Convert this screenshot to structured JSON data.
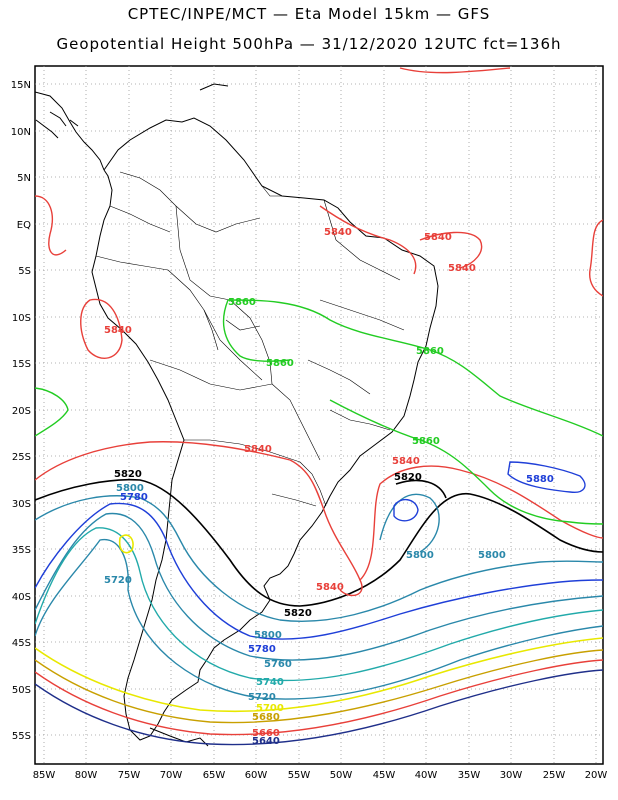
{
  "title_line1": "CPTEC/INPE/MCT —  Eta Model 15km — GFS",
  "title_line2": "Geopotential Height 500hPa — 31/12/2020 12UTC fct=136h",
  "lat_labels": [
    "15N",
    "10N",
    "5N",
    "EQ",
    "5S",
    "10S",
    "15S",
    "20S",
    "25S",
    "30S",
    "35S",
    "40S",
    "45S",
    "50S",
    "55S"
  ],
  "lon_labels": [
    "85W",
    "80W",
    "75W",
    "70W",
    "65W",
    "60W",
    "55W",
    "50W",
    "45W",
    "40W",
    "35W",
    "30W",
    "25W",
    "20W"
  ],
  "contour_levels": [
    {
      "value": "5880",
      "color": "#1f3fd8"
    },
    {
      "value": "5860",
      "color": "#22cc22"
    },
    {
      "value": "5840",
      "color": "#e8403a"
    },
    {
      "value": "5820",
      "color": "#000000"
    },
    {
      "value": "5800",
      "color": "#2a88aa"
    },
    {
      "value": "5780",
      "color": "#1f3fd8"
    },
    {
      "value": "5760",
      "color": "#2a88aa"
    },
    {
      "value": "5740",
      "color": "#22aaaa"
    },
    {
      "value": "5720",
      "color": "#2a88aa"
    },
    {
      "value": "5700",
      "color": "#e8e800"
    },
    {
      "value": "5680",
      "color": "#c8a000"
    },
    {
      "value": "5660",
      "color": "#e8403a"
    },
    {
      "value": "5640",
      "color": "#1f2f8a"
    }
  ],
  "contour_labels": [
    {
      "text": "5840",
      "color": "#e8403a"
    },
    {
      "text": "5840",
      "color": "#e8403a"
    },
    {
      "text": "5840",
      "color": "#e8403a"
    },
    {
      "text": "5840",
      "color": "#e8403a"
    },
    {
      "text": "5840",
      "color": "#e8403a"
    },
    {
      "text": "5840",
      "color": "#e8403a"
    },
    {
      "text": "5840",
      "color": "#e8403a"
    },
    {
      "text": "5860",
      "color": "#22cc22"
    },
    {
      "text": "5860",
      "color": "#22cc22"
    },
    {
      "text": "5860",
      "color": "#22cc22"
    },
    {
      "text": "5860",
      "color": "#22cc22"
    },
    {
      "text": "5880",
      "color": "#1f3fd8"
    },
    {
      "text": "5820",
      "color": "#000000"
    },
    {
      "text": "5820",
      "color": "#000000"
    },
    {
      "text": "5820",
      "color": "#000000"
    },
    {
      "text": "5800",
      "color": "#2a88aa"
    },
    {
      "text": "5800",
      "color": "#2a88aa"
    },
    {
      "text": "5800",
      "color": "#2a88aa"
    },
    {
      "text": "5800",
      "color": "#2a88aa"
    },
    {
      "text": "5780",
      "color": "#1f3fd8"
    },
    {
      "text": "5780",
      "color": "#1f3fd8"
    },
    {
      "text": "5760",
      "color": "#2a88aa"
    },
    {
      "text": "5740",
      "color": "#22aaaa"
    },
    {
      "text": "5720",
      "color": "#2a88aa"
    },
    {
      "text": "5720",
      "color": "#2a88aa"
    },
    {
      "text": "5700",
      "color": "#e8e800"
    },
    {
      "text": "5680",
      "color": "#c8a000"
    },
    {
      "text": "5660",
      "color": "#e8403a"
    },
    {
      "text": "5640",
      "color": "#1f2f8a"
    }
  ]
}
